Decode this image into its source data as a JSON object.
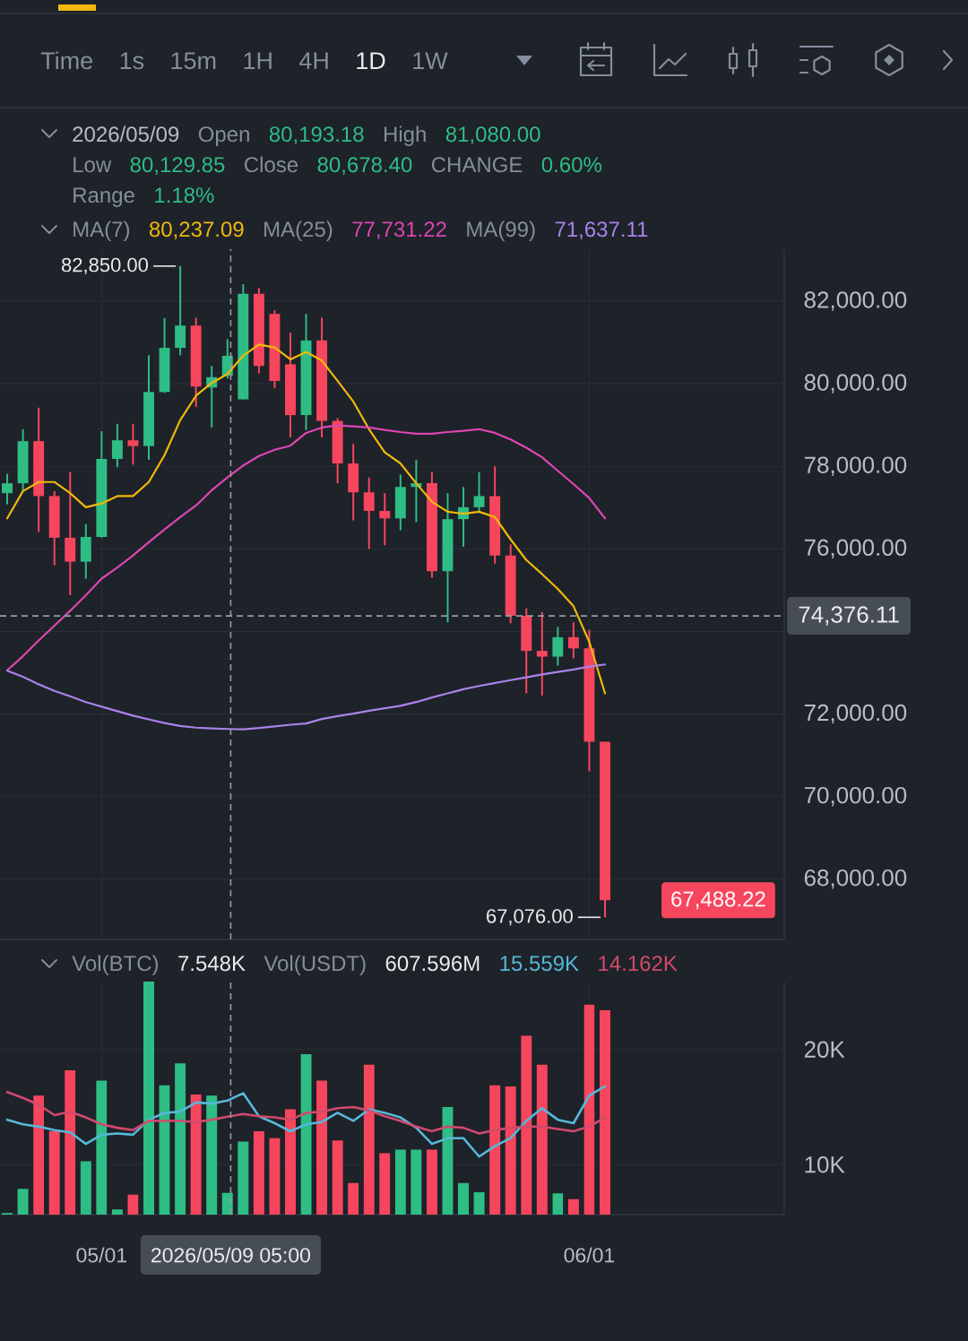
{
  "chart_data": [
    {
      "type": "other",
      "annotations": [
        "Time",
        "1s",
        "15m",
        "1H",
        "4H",
        "1D",
        "1W"
      ]
    },
    {
      "type": "candlestick",
      "x": [
        "2026-04-25",
        "2026-04-26",
        "2026-04-27",
        "2026-04-28",
        "2026-04-29",
        "2026-04-30",
        "2026-05-01",
        "2026-05-02",
        "2026-05-03",
        "2026-05-04",
        "2026-05-05",
        "2026-05-06",
        "2026-05-07",
        "2026-05-08",
        "2026-05-09",
        "2026-05-10",
        "2026-05-11",
        "2026-05-12",
        "2026-05-13",
        "2026-05-14",
        "2026-05-15",
        "2026-05-16",
        "2026-05-17",
        "2026-05-18",
        "2026-05-19",
        "2026-05-20",
        "2026-05-21",
        "2026-05-22",
        "2026-05-23",
        "2026-05-24",
        "2026-05-25",
        "2026-05-26",
        "2026-05-27",
        "2026-05-28",
        "2026-05-29",
        "2026-05-30",
        "2026-05-31",
        "2026-06-01",
        "2026-06-02"
      ],
      "ohlc": [
        [
          77350,
          77820,
          77080,
          77590
        ],
        [
          77590,
          78900,
          77400,
          78610
        ],
        [
          78610,
          79420,
          76410,
          77280
        ],
        [
          77280,
          77400,
          75600,
          76270
        ],
        [
          76270,
          77860,
          74880,
          75690
        ],
        [
          75690,
          76600,
          75280,
          76290
        ],
        [
          76290,
          78850,
          76270,
          78180
        ],
        [
          78180,
          79030,
          77980,
          78630
        ],
        [
          78630,
          79030,
          78040,
          78490
        ],
        [
          78490,
          80690,
          78160,
          79800
        ],
        [
          79800,
          81590,
          79780,
          80870
        ],
        [
          80870,
          82850,
          80690,
          81410
        ],
        [
          81410,
          81600,
          79440,
          79930
        ],
        [
          79910,
          80430,
          78940,
          80160
        ],
        [
          80193.18,
          81080.0,
          80129.85,
          80678.4
        ],
        [
          79620,
          82410,
          79620,
          82180
        ],
        [
          82180,
          82320,
          80250,
          80430
        ],
        [
          81690,
          81780,
          79890,
          80070
        ],
        [
          80470,
          81240,
          78700,
          79240
        ],
        [
          79240,
          81690,
          78880,
          81050
        ],
        [
          81050,
          81600,
          78700,
          79100
        ],
        [
          79100,
          79170,
          77590,
          78070
        ],
        [
          78070,
          78540,
          76690,
          77370
        ],
        [
          77370,
          77730,
          76000,
          76920
        ],
        [
          76920,
          77350,
          76090,
          76740
        ],
        [
          76740,
          77800,
          76450,
          77500
        ],
        [
          77500,
          78160,
          76650,
          77590
        ],
        [
          77590,
          77860,
          75300,
          75460
        ],
        [
          75460,
          77350,
          74220,
          76720
        ],
        [
          76720,
          77500,
          76050,
          77010
        ],
        [
          77010,
          77860,
          76900,
          77280
        ],
        [
          77280,
          78000,
          75640,
          75840
        ],
        [
          75840,
          76110,
          74200,
          74380
        ],
        [
          74380,
          74560,
          72500,
          73530
        ],
        [
          73530,
          74470,
          72450,
          73390
        ],
        [
          73390,
          74110,
          73170,
          73860
        ],
        [
          73860,
          74220,
          73350,
          73590
        ],
        [
          73590,
          74040,
          70610,
          71330
        ],
        [
          71330,
          71330,
          67076.0,
          67488.22
        ]
      ],
      "colors": [
        "#2ebd85",
        "#2ebd85",
        "#f6465d",
        "#f6465d",
        "#f6465d",
        "#2ebd85",
        "#2ebd85",
        "#2ebd85",
        "#f6465d",
        "#2ebd85",
        "#2ebd85",
        "#2ebd85",
        "#f6465d",
        "#2ebd85",
        "#2ebd85",
        "#2ebd85",
        "#f6465d",
        "#f6465d",
        "#f6465d",
        "#2ebd85",
        "#f6465d",
        "#f6465d",
        "#f6465d",
        "#f6465d",
        "#f6465d",
        "#2ebd85",
        "#2ebd85",
        "#f6465d",
        "#2ebd85",
        "#2ebd85",
        "#2ebd85",
        "#f6465d",
        "#f6465d",
        "#f6465d",
        "#f6465d",
        "#2ebd85",
        "#f6465d",
        "#f6465d",
        "#f6465d"
      ],
      "series": [
        {
          "type": "line",
          "color": "#f0b90b",
          "values": [
            76740,
            77400,
            77620,
            77620,
            77350,
            77010,
            77100,
            77280,
            77280,
            77620,
            78270,
            79120,
            79710,
            80020,
            80237.09,
            80680,
            80950,
            80880,
            80590,
            80770,
            80560,
            80070,
            79570,
            78900,
            78340,
            78070,
            77590,
            77140,
            76900,
            76850,
            76900,
            76770,
            76230,
            75730,
            75390,
            75030,
            74610,
            73750,
            72500
          ]
        },
        {
          "type": "line",
          "color": "#dc46b4",
          "values": [
            73060,
            73400,
            73780,
            74140,
            74500,
            74880,
            75280,
            75550,
            75840,
            76160,
            76470,
            76770,
            77050,
            77420,
            77731.22,
            78020,
            78250,
            78400,
            78500,
            78810,
            78940,
            78990,
            78970,
            78940,
            78880,
            78830,
            78790,
            78790,
            78830,
            78860,
            78900,
            78810,
            78650,
            78450,
            78220,
            77890,
            77570,
            77230,
            76740
          ]
        },
        {
          "type": "line",
          "color": "#a983ea",
          "values": [
            73050,
            72900,
            72720,
            72560,
            72430,
            72290,
            72180,
            72070,
            71960,
            71870,
            71780,
            71710,
            71670,
            71650,
            71637.11,
            71630,
            71660,
            71700,
            71740,
            71770,
            71880,
            71950,
            72010,
            72080,
            72140,
            72200,
            72290,
            72400,
            72500,
            72600,
            72680,
            72750,
            72820,
            72890,
            72960,
            73020,
            73080,
            73150,
            73200
          ]
        }
      ],
      "xlim": [
        "2026-04-24T13:00",
        "2026-06-13T09:30"
      ],
      "ylim": [
        66540,
        83260
      ],
      "xticks": [
        {
          "value": "2026-05-01",
          "label": null
        },
        {
          "value": "2026-06-01",
          "label": null
        }
      ],
      "yticks": [
        {
          "value": 68000,
          "label": "68,000.00"
        },
        {
          "value": 70000,
          "label": "70,000.00"
        },
        {
          "value": 72000,
          "label": "72,000.00"
        },
        {
          "value": 74000,
          "label": null
        },
        {
          "value": 76000,
          "label": "76,000.00"
        },
        {
          "value": 78000,
          "label": "78,000.00"
        },
        {
          "value": 80000,
          "label": "80,000.00"
        },
        {
          "value": 82000,
          "label": "82,000.00"
        }
      ],
      "tick_labels": "y",
      "grid": true,
      "ref_lines": [
        {
          "axis": "y",
          "value": 74376.11,
          "label": "74,376.11",
          "line_style": "dashed",
          "color": "#959ca6"
        },
        {
          "axis": "x",
          "value": "2026-05-09T05:00",
          "line_style": "dashed",
          "color": "#959ca6"
        }
      ],
      "annotations": [
        "2026/05/09",
        "Open",
        "80,193.18",
        "High",
        "81,080.00",
        "Low",
        "80,129.85",
        "Close",
        "80,678.40",
        "CHANGE",
        "0.60%",
        "Range",
        "1.18%",
        "MA(7)",
        "80,237.09",
        "MA(25)",
        "77,731.22",
        "MA(99)",
        "71,637.11",
        {
          "text": "82,850.00",
          "x": "2026-05-06",
          "y": 82850
        },
        {
          "text": "67,076.00",
          "x": "2026-06-02",
          "y": 67076.0
        },
        "67,488.22"
      ]
    },
    {
      "type": "bar",
      "x": [
        "2026-04-25",
        "2026-04-26",
        "2026-04-27",
        "2026-04-28",
        "2026-04-29",
        "2026-04-30",
        "2026-05-01",
        "2026-05-02",
        "2026-05-03",
        "2026-05-04",
        "2026-05-05",
        "2026-05-06",
        "2026-05-07",
        "2026-05-08",
        "2026-05-09",
        "2026-05-10",
        "2026-05-11",
        "2026-05-12",
        "2026-05-13",
        "2026-05-14",
        "2026-05-15",
        "2026-05-16",
        "2026-05-17",
        "2026-05-18",
        "2026-05-19",
        "2026-05-20",
        "2026-05-21",
        "2026-05-22",
        "2026-05-23",
        "2026-05-24",
        "2026-05-25",
        "2026-05-26",
        "2026-05-27",
        "2026-05-28",
        "2026-05-29",
        "2026-05-30",
        "2026-05-31",
        "2026-06-01",
        "2026-06-02"
      ],
      "series": [
        {
          "values": [
            5.8,
            7.9,
            16.0,
            12.9,
            18.2,
            10.3,
            17.3,
            6.1,
            7.4,
            25.9,
            16.9,
            18.8,
            16.1,
            16.0,
            7.548,
            12.0,
            12.9,
            12.3,
            14.8,
            19.6,
            17.3,
            12.1,
            8.4,
            18.7,
            11.0,
            11.3,
            11.3,
            11.3,
            15.0,
            8.4,
            7.6,
            16.9,
            16.8,
            21.2,
            18.7,
            7.5,
            7.0,
            23.9,
            23.4
          ],
          "colors": [
            "#2ebd85",
            "#2ebd85",
            "#f6465d",
            "#f6465d",
            "#f6465d",
            "#2ebd85",
            "#2ebd85",
            "#2ebd85",
            "#f6465d",
            "#2ebd85",
            "#2ebd85",
            "#2ebd85",
            "#f6465d",
            "#2ebd85",
            "#2ebd85",
            "#2ebd85",
            "#f6465d",
            "#f6465d",
            "#f6465d",
            "#2ebd85",
            "#f6465d",
            "#f6465d",
            "#f6465d",
            "#f6465d",
            "#f6465d",
            "#2ebd85",
            "#2ebd85",
            "#f6465d",
            "#2ebd85",
            "#2ebd85",
            "#2ebd85",
            "#f6465d",
            "#f6465d",
            "#f6465d",
            "#f6465d",
            "#2ebd85",
            "#f6465d",
            "#f6465d",
            "#f6465d"
          ]
        },
        {
          "type": "line",
          "color": "#56b8d8",
          "values": [
            13.9,
            13.5,
            13.3,
            13.0,
            12.8,
            11.8,
            12.6,
            12.7,
            12.6,
            13.9,
            14.5,
            14.6,
            15.4,
            15.3,
            15.559,
            16.2,
            14.2,
            13.6,
            12.9,
            13.5,
            13.7,
            14.5,
            13.8,
            14.8,
            14.5,
            14.1,
            13.2,
            11.8,
            12.3,
            12.3,
            10.7,
            11.6,
            12.3,
            13.8,
            14.9,
            13.9,
            13.6,
            16.0,
            16.8
          ]
        },
        {
          "type": "line",
          "color": "#d14a6c",
          "values": [
            16.3,
            15.8,
            15.2,
            14.3,
            14.6,
            14.1,
            13.5,
            13.2,
            13.0,
            13.8,
            13.8,
            13.8,
            13.7,
            13.9,
            14.162,
            14.4,
            14.2,
            14.1,
            13.9,
            14.5,
            14.6,
            14.9,
            15.0,
            14.7,
            14.2,
            13.8,
            13.3,
            12.9,
            13.3,
            13.2,
            12.7,
            13.0,
            13.2,
            13.3,
            13.3,
            13.1,
            12.9,
            13.3,
            14.1
          ]
        }
      ],
      "xlim": [
        "2026-04-24T13:00",
        "2026-06-13T09:30"
      ],
      "ylim": [
        5.66,
        25.9
      ],
      "xticks": [
        {
          "value": "2026-05-01",
          "label": "05/01"
        },
        {
          "value": "2026-06-01",
          "label": "06/01"
        }
      ],
      "yticks": [
        {
          "value": 10,
          "label": "10K"
        },
        {
          "value": 20,
          "label": "20K"
        }
      ],
      "grid": true,
      "ref_lines": [
        {
          "axis": "x",
          "value": "2026-05-09T05:00",
          "label": "2026/05/09 05:00",
          "line_style": "dashed",
          "color": "#959ca6"
        }
      ],
      "annotations": [
        "Vol(BTC)",
        "7.548K",
        "Vol(USDT)",
        "607.596M",
        "15.559K",
        "14.162K"
      ]
    }
  ]
}
